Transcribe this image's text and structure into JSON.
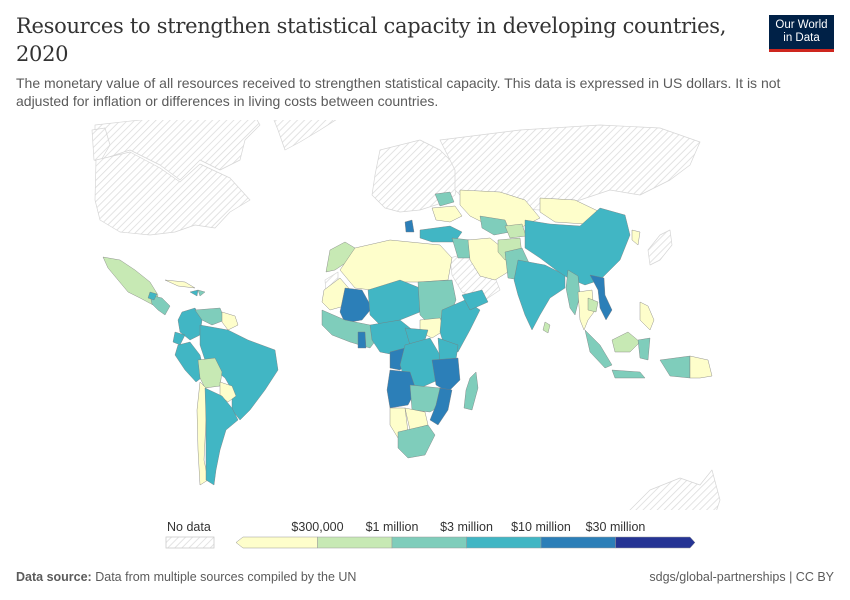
{
  "header": {
    "title": "Resources to strengthen statistical capacity in developing countries, 2020",
    "subtitle": "The monetary value of all resources received to strengthen statistical capacity. This data is expressed in US dollars. It is not adjusted for inflation or differences in living costs between countries.",
    "logo_line1": "Our World",
    "logo_line2": "in Data"
  },
  "legend": {
    "no_data_label": "No data",
    "bins": [
      {
        "label": "",
        "color": "#fefecb"
      },
      {
        "label": "$300,000",
        "color": "#c7e9b4"
      },
      {
        "label": "$1 million",
        "color": "#7fcdbb"
      },
      {
        "label": "$3 million",
        "color": "#41b6c4"
      },
      {
        "label": "$10 million",
        "color": "#2c7fb8"
      },
      {
        "label": "$30 million",
        "color": "#253494"
      }
    ],
    "no_data_color": "#e8e8e8"
  },
  "footer": {
    "source_label": "Data source:",
    "source_text": "Data from multiple sources compiled by the UN",
    "right_text": "sdgs/global-partnerships | CC BY"
  },
  "chart_data": {
    "type": "choropleth",
    "title": "Resources to strengthen statistical capacity in developing countries, 2020",
    "unit": "US dollars",
    "year": 2020,
    "scale_thresholds": [
      300000,
      1000000,
      3000000,
      10000000,
      30000000
    ],
    "scale_labels": [
      "$300,000",
      "$1 million",
      "$3 million",
      "$10 million",
      "$30 million"
    ],
    "regions": [
      {
        "name": "North America (US, Canada)",
        "bin": "no-data"
      },
      {
        "name": "Greenland",
        "bin": "no-data"
      },
      {
        "name": "Mexico",
        "bin": "$300k-$1M"
      },
      {
        "name": "Central America",
        "bin": "$1M-$3M"
      },
      {
        "name": "Cuba",
        "bin": "<$300k"
      },
      {
        "name": "Colombia/Peru/Ecuador",
        "bin": "$3M-$10M"
      },
      {
        "name": "Venezuela",
        "bin": "$1M-$3M"
      },
      {
        "name": "Guyana/Suriname",
        "bin": "<$300k"
      },
      {
        "name": "Brazil",
        "bin": "$3M-$10M"
      },
      {
        "name": "Bolivia",
        "bin": "$300k-$1M"
      },
      {
        "name": "Paraguay",
        "bin": "<$300k"
      },
      {
        "name": "Chile",
        "bin": "<$300k"
      },
      {
        "name": "Argentina",
        "bin": "$3M-$10M"
      },
      {
        "name": "Uruguay",
        "bin": "no-data"
      },
      {
        "name": "Europe",
        "bin": "no-data"
      },
      {
        "name": "Russia",
        "bin": "no-data"
      },
      {
        "name": "Morocco",
        "bin": "$300k-$1M"
      },
      {
        "name": "Algeria/Libya/Egypt",
        "bin": "<$300k"
      },
      {
        "name": "Mali",
        "bin": "$10M-$30M"
      },
      {
        "name": "Niger/Chad",
        "bin": "$3M-$10M"
      },
      {
        "name": "Sudan",
        "bin": "$1M-$3M"
      },
      {
        "name": "South Sudan",
        "bin": "<$300k"
      },
      {
        "name": "Ethiopia/Somalia",
        "bin": "$3M-$10M"
      },
      {
        "name": "DR Congo",
        "bin": "$3M-$10M"
      },
      {
        "name": "Angola",
        "bin": "$10M-$30M"
      },
      {
        "name": "Tanzania/Kenya",
        "bin": "$10M-$30M"
      },
      {
        "name": "Mozambique",
        "bin": "$10M-$30M"
      },
      {
        "name": "Namibia/Botswana",
        "bin": "<$300k"
      },
      {
        "name": "South Africa",
        "bin": "$1M-$3M"
      },
      {
        "name": "Madagascar",
        "bin": "$1M-$3M"
      },
      {
        "name": "Saudi Arabia",
        "bin": "no-data"
      },
      {
        "name": "Iran",
        "bin": "<$300k"
      },
      {
        "name": "Kazakhstan/Mongolia",
        "bin": "<$300k"
      },
      {
        "name": "Afghanistan",
        "bin": "$300k-$1M"
      },
      {
        "name": "Pakistan",
        "bin": "$1M-$3M"
      },
      {
        "name": "India",
        "bin": "$3M-$10M"
      },
      {
        "name": "China",
        "bin": "$3M-$10M"
      },
      {
        "name": "Nepal",
        "bin": "$10M-$30M"
      },
      {
        "name": "Vietnam",
        "bin": "$10M-$30M"
      },
      {
        "name": "Myanmar",
        "bin": "$1M-$3M"
      },
      {
        "name": "Thailand",
        "bin": "<$300k"
      },
      {
        "name": "Indonesia",
        "bin": "$1M-$3M"
      },
      {
        "name": "Papua New Guinea",
        "bin": "<$300k"
      },
      {
        "name": "Australia/New Zealand",
        "bin": "no-data"
      },
      {
        "name": "Japan",
        "bin": "no-data"
      },
      {
        "name": "Turkey",
        "bin": "$3M-$10M"
      },
      {
        "name": "Yemen",
        "bin": "$3M-$10M"
      }
    ]
  }
}
